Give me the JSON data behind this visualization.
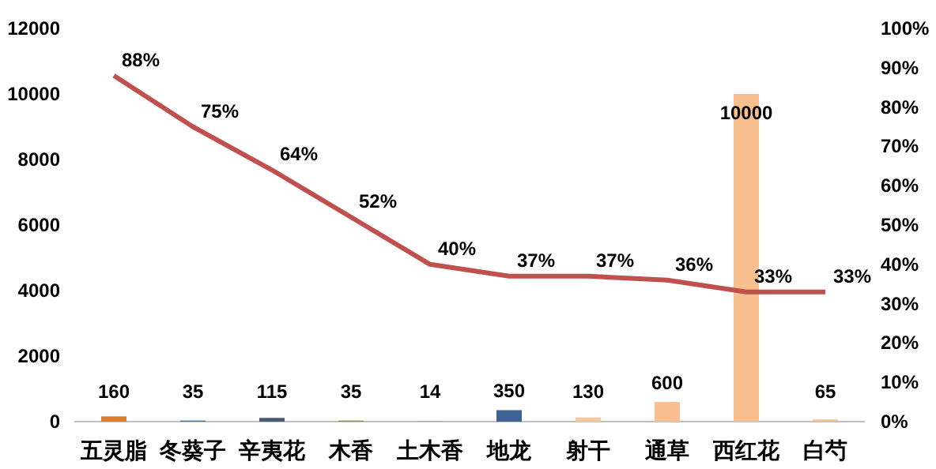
{
  "chart_data": {
    "type": "bar",
    "categories": [
      "五灵脂",
      "冬葵子",
      "辛夷花",
      "木香",
      "土木香",
      "地龙",
      "射干",
      "通草",
      "西红花",
      "白芍"
    ],
    "series": [
      {
        "values": [
          160,
          35,
          115,
          35,
          14,
          350,
          130,
          600,
          10000,
          65
        ],
        "colors": [
          "#e07b2a",
          "#4a7fa0",
          "#4a5a78",
          "#8a9a5b",
          "#a0a0a0",
          "#3e6294",
          "#f5c8a0",
          "#f9bf8f",
          "#f9bf8f",
          "#f9bf8f"
        ],
        "data_labels": true
      },
      {
        "type": "line",
        "axis": "y2",
        "color": "#c0504d",
        "values": [
          88,
          75,
          64,
          52,
          40,
          37,
          37,
          36,
          33,
          33
        ],
        "value_labels": [
          "88%",
          "75%",
          "64%",
          "52%",
          "40%",
          "37%",
          "37%",
          "36%",
          "33%",
          "33%"
        ]
      }
    ],
    "ylim": [
      0,
      12000
    ],
    "yticks": [
      0,
      2000,
      4000,
      6000,
      8000,
      10000,
      12000
    ],
    "y2lim": [
      0,
      100
    ],
    "y2ticks": [
      {
        "value": 0,
        "label": "0%"
      },
      {
        "value": 10,
        "label": "10%"
      },
      {
        "value": 20,
        "label": "20%"
      },
      {
        "value": 30,
        "label": "30%"
      },
      {
        "value": 40,
        "label": "40%"
      },
      {
        "value": 50,
        "label": "50%"
      },
      {
        "value": 60,
        "label": "60%"
      },
      {
        "value": 70,
        "label": "70%"
      },
      {
        "value": 80,
        "label": "80%"
      },
      {
        "value": 90,
        "label": "90%"
      },
      {
        "value": 100,
        "label": "100%"
      }
    ],
    "grid": false
  }
}
